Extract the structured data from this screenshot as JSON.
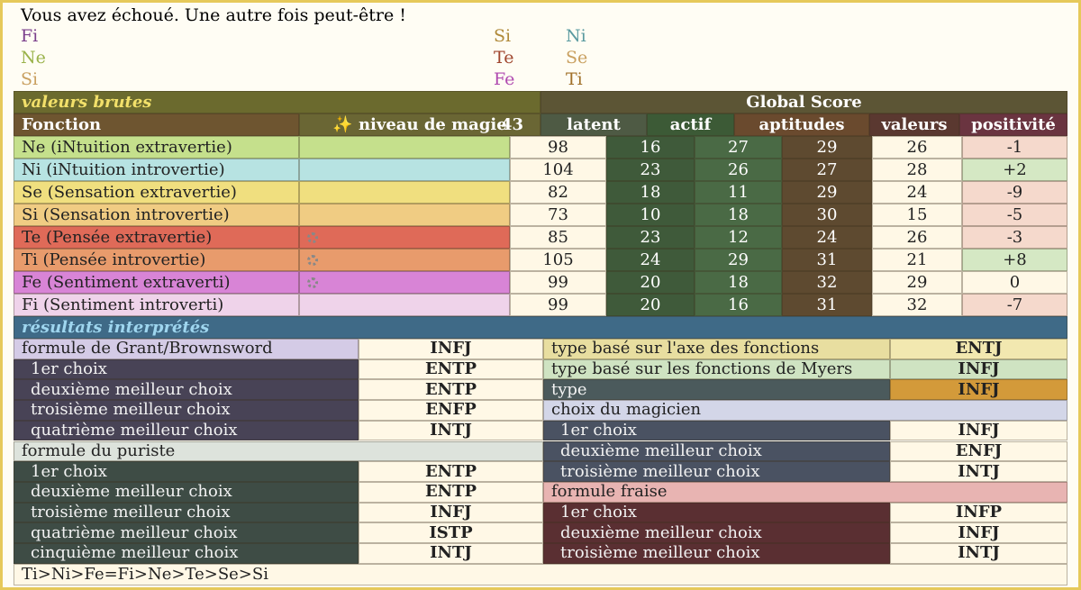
{
  "header": {
    "message": "Vous avez échoué. Une autre fois peut-être !",
    "functions": [
      [
        "Fi",
        "Ne",
        "Si"
      ],
      [
        "Si",
        "Te",
        "Fe"
      ],
      [
        "Ni",
        "Se",
        "Ti"
      ]
    ]
  },
  "raw": {
    "title": "valeurs brutes",
    "global_score": "Global Score",
    "columns": [
      "Fonction",
      "✨ niveau de magie",
      "latent",
      "actif",
      "aptitudes",
      "valeurs",
      "positivité"
    ],
    "magic_level": 43,
    "rows": [
      [
        "Ne (iNtuition extravertie)",
        "98",
        "16",
        "27",
        "29",
        "26",
        "-1"
      ],
      [
        "Ni (iNtuition introvertie)",
        "104",
        "23",
        "26",
        "27",
        "28",
        "+2"
      ],
      [
        "Se (Sensation extravertie)",
        "82",
        "18",
        "11",
        "29",
        "24",
        "-9"
      ],
      [
        "Si (Sensation introvertie)",
        "73",
        "10",
        "18",
        "30",
        "15",
        "-5"
      ],
      [
        "Te (Pensée extravertie)",
        "85",
        "23",
        "12",
        "24",
        "26",
        "-3"
      ],
      [
        "Ti (Pensée introvertie)",
        "105",
        "24",
        "29",
        "31",
        "21",
        "+8"
      ],
      [
        "Fe (Sentiment extraverti)",
        "99",
        "20",
        "18",
        "32",
        "29",
        "0"
      ],
      [
        "Fi (Sentiment introverti)",
        "99",
        "20",
        "16",
        "31",
        "32",
        "-7"
      ]
    ]
  },
  "interpreted": {
    "title": "résultats interprétés",
    "left": [
      [
        "formule de Grant/Brownsword",
        "INFJ"
      ],
      [
        "1er choix",
        "ENTP"
      ],
      [
        "deuxième meilleur choix",
        "ENTP"
      ],
      [
        "troisième meilleur choix",
        "ENFP"
      ],
      [
        "quatrième meilleur choix",
        "INTJ"
      ],
      [
        "formule du puriste"
      ],
      [
        "1er choix",
        "ENTP"
      ],
      [
        "deuxième meilleur choix",
        "ENTP"
      ],
      [
        "troisième meilleur choix",
        "INFJ"
      ],
      [
        "quatrième meilleur choix",
        "ISTP"
      ],
      [
        "cinquième meilleur choix",
        "INTJ"
      ]
    ],
    "right": [
      [
        "type basé sur l'axe des fonctions",
        "ENTJ"
      ],
      [
        "type basé sur les fonctions de Myers",
        "INFJ"
      ],
      [
        "type",
        "INFJ"
      ],
      [
        "choix du magicien"
      ],
      [
        "1er choix",
        "INFJ"
      ],
      [
        "deuxième meilleur choix",
        "ENFJ"
      ],
      [
        "troisième meilleur choix",
        "INTJ"
      ],
      [
        "formule fraise"
      ],
      [
        "1er choix",
        "INFP"
      ],
      [
        "deuxième meilleur choix",
        "INFJ"
      ],
      [
        "troisième meilleur choix",
        "INTJ"
      ]
    ]
  },
  "ranking": "Ti>Ni>Fe=Fi>Ne>Te>Se>Si"
}
